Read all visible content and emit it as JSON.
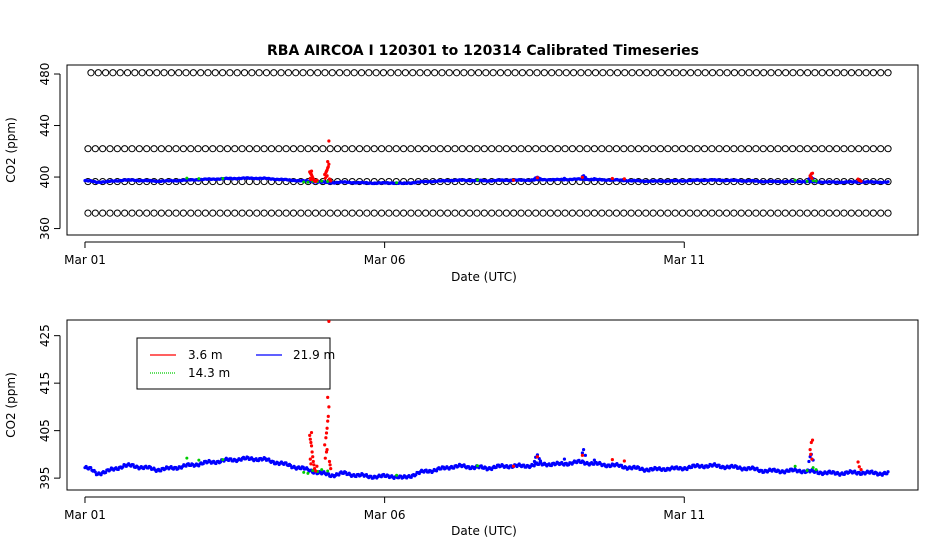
{
  "colors": {
    "series_3_6m": "#ff0000",
    "series_14_3m": "#00cc00",
    "series_21_9m": "#0000ff",
    "reference": "#000000"
  },
  "chart_data": [
    {
      "type": "scatter",
      "title": "RBA   AIRCOA I   120301  to  120314   Calibrated Timeseries",
      "xlabel": "Date (UTC)",
      "ylabel": "CO2 (ppm)",
      "xlim": [
        -0.3,
        13.9
      ],
      "ylim": [
        355,
        487
      ],
      "x_ticks": [
        {
          "x": 0,
          "label": "Mar 01"
        },
        {
          "x": 5,
          "label": "Mar 06"
        },
        {
          "x": 10,
          "label": "Mar 11"
        }
      ],
      "y_ticks": [
        360,
        400,
        440,
        480
      ],
      "reference_levels": [
        {
          "name": "",
          "value": 481,
          "x_start": 0.1,
          "x_end": 13.4,
          "n": 110
        },
        {
          "name": "",
          "value": 422,
          "x_start": 0.05,
          "x_end": 13.4,
          "n": 110
        },
        {
          "name": "",
          "value": 396.5,
          "x_start": 0.05,
          "x_end": 13.4,
          "n": 110
        },
        {
          "name": "",
          "value": 372,
          "x_start": 0.05,
          "x_end": 13.4,
          "n": 110
        }
      ],
      "series_ref": "timeseries"
    },
    {
      "type": "scatter",
      "title": "",
      "xlabel": "Date (UTC)",
      "ylabel": "CO2 (ppm)",
      "xlim": [
        -0.3,
        13.9
      ],
      "ylim": [
        392.5,
        428.3
      ],
      "x_ticks": [
        {
          "x": 0,
          "label": "Mar 01"
        },
        {
          "x": 5,
          "label": "Mar 06"
        },
        {
          "x": 10,
          "label": "Mar 11"
        }
      ],
      "y_ticks": [
        395,
        405,
        415,
        425
      ],
      "legend": {
        "placement": "top-left",
        "entries": [
          {
            "name": "3.6 m",
            "color": "#ff0000"
          },
          {
            "name": "21.9 m",
            "color": "#0000ff"
          },
          {
            "name": "14.3 m",
            "color": "#00cc00"
          }
        ]
      },
      "series_ref": "timeseries"
    }
  ],
  "timeseries": {
    "baseline": [
      [
        0.0,
        397.2
      ],
      [
        0.1,
        396.8
      ],
      [
        0.2,
        396.0
      ],
      [
        0.35,
        396.3
      ],
      [
        0.5,
        397.0
      ],
      [
        0.65,
        397.6
      ],
      [
        0.8,
        397.6
      ],
      [
        1.0,
        397.2
      ],
      [
        1.2,
        396.8
      ],
      [
        1.4,
        397.0
      ],
      [
        1.6,
        397.4
      ],
      [
        1.8,
        397.8
      ],
      [
        2.0,
        398.2
      ],
      [
        2.2,
        398.5
      ],
      [
        2.4,
        398.8
      ],
      [
        2.6,
        399.0
      ],
      [
        2.8,
        399.1
      ],
      [
        3.0,
        398.9
      ],
      [
        3.2,
        398.3
      ],
      [
        3.4,
        397.7
      ],
      [
        3.6,
        397.1
      ],
      [
        3.8,
        396.5
      ],
      [
        3.95,
        396.0
      ],
      [
        4.1,
        395.6
      ],
      [
        4.3,
        396.0
      ],
      [
        4.5,
        395.7
      ],
      [
        4.7,
        395.4
      ],
      [
        4.9,
        395.3
      ],
      [
        5.1,
        395.5
      ],
      [
        5.3,
        395.0
      ],
      [
        5.5,
        395.8
      ],
      [
        5.7,
        396.5
      ],
      [
        5.9,
        396.8
      ],
      [
        6.1,
        397.4
      ],
      [
        6.3,
        397.5
      ],
      [
        6.5,
        397.3
      ],
      [
        6.7,
        397.1
      ],
      [
        6.9,
        397.4
      ],
      [
        7.1,
        397.6
      ],
      [
        7.3,
        397.5
      ],
      [
        7.5,
        397.8
      ],
      [
        7.7,
        398.0
      ],
      [
        7.9,
        397.9
      ],
      [
        8.1,
        398.2
      ],
      [
        8.3,
        398.4
      ],
      [
        8.5,
        398.0
      ],
      [
        8.7,
        397.8
      ],
      [
        8.9,
        397.6
      ],
      [
        9.1,
        397.2
      ],
      [
        9.3,
        396.9
      ],
      [
        9.5,
        396.8
      ],
      [
        9.7,
        397.0
      ],
      [
        9.9,
        397.0
      ],
      [
        10.1,
        397.3
      ],
      [
        10.3,
        397.6
      ],
      [
        10.5,
        397.6
      ],
      [
        10.7,
        397.4
      ],
      [
        10.9,
        397.2
      ],
      [
        11.1,
        397.0
      ],
      [
        11.3,
        396.6
      ],
      [
        11.5,
        396.5
      ],
      [
        11.7,
        396.5
      ],
      [
        11.9,
        396.6
      ],
      [
        12.1,
        396.4
      ],
      [
        12.3,
        396.2
      ],
      [
        12.5,
        396.0
      ],
      [
        12.7,
        396.1
      ],
      [
        12.9,
        396.2
      ],
      [
        13.1,
        396.1
      ],
      [
        13.3,
        396.0
      ],
      [
        13.4,
        396.0
      ]
    ],
    "red_points": [
      [
        3.75,
        404.0
      ],
      [
        3.76,
        403.2
      ],
      [
        3.77,
        402.5
      ],
      [
        3.78,
        401.8
      ],
      [
        3.79,
        400.5
      ],
      [
        3.8,
        399.5
      ],
      [
        3.78,
        404.6
      ],
      [
        3.81,
        398.5
      ],
      [
        3.82,
        397.8
      ],
      [
        3.83,
        397.0
      ],
      [
        3.77,
        398.0
      ],
      [
        3.76,
        399.0
      ],
      [
        3.85,
        396.5
      ],
      [
        3.87,
        397.5
      ],
      [
        4.0,
        402.0
      ],
      [
        4.02,
        403.5
      ],
      [
        4.03,
        404.5
      ],
      [
        4.04,
        405.5
      ],
      [
        4.05,
        407.0
      ],
      [
        4.06,
        408.0
      ],
      [
        4.07,
        410.0
      ],
      [
        4.05,
        412.0
      ],
      [
        4.07,
        428.0
      ],
      [
        4.03,
        400.5
      ],
      [
        4.04,
        401.0
      ],
      [
        4.01,
        399.2
      ],
      [
        4.08,
        398.5
      ],
      [
        4.09,
        397.8
      ],
      [
        4.1,
        397.0
      ],
      [
        7.55,
        399.5
      ],
      [
        8.3,
        399.8
      ],
      [
        8.8,
        398.9
      ],
      [
        9.0,
        398.6
      ],
      [
        7.15,
        397.5
      ],
      [
        12.1,
        401.0
      ],
      [
        12.12,
        402.5
      ],
      [
        12.14,
        403.0
      ],
      [
        12.11,
        400.0
      ],
      [
        12.13,
        399.0
      ],
      [
        12.9,
        398.4
      ],
      [
        12.92,
        397.4
      ],
      [
        12.95,
        396.8
      ]
    ],
    "green_points": [
      [
        1.7,
        399.2
      ],
      [
        1.9,
        398.8
      ],
      [
        2.3,
        398.9
      ],
      [
        3.65,
        396.2
      ],
      [
        3.72,
        396.0
      ],
      [
        3.8,
        396.6
      ],
      [
        3.88,
        396.4
      ],
      [
        3.95,
        396.8
      ],
      [
        4.05,
        396.5
      ],
      [
        5.2,
        395.6
      ],
      [
        6.55,
        397.6
      ],
      [
        11.85,
        397.5
      ],
      [
        12.05,
        396.6
      ],
      [
        12.15,
        397.2
      ],
      [
        12.2,
        396.8
      ]
    ],
    "blue_bumps": [
      [
        7.5,
        398.5
      ],
      [
        7.52,
        399.4
      ],
      [
        7.55,
        399.9
      ],
      [
        7.58,
        399.1
      ],
      [
        7.6,
        398.6
      ],
      [
        8.0,
        399.0
      ],
      [
        8.3,
        400.3
      ],
      [
        8.32,
        401.0
      ],
      [
        8.35,
        399.8
      ],
      [
        8.5,
        398.8
      ],
      [
        12.08,
        398.5
      ],
      [
        12.1,
        399.5
      ],
      [
        12.12,
        400.0
      ],
      [
        12.15,
        398.8
      ]
    ]
  }
}
